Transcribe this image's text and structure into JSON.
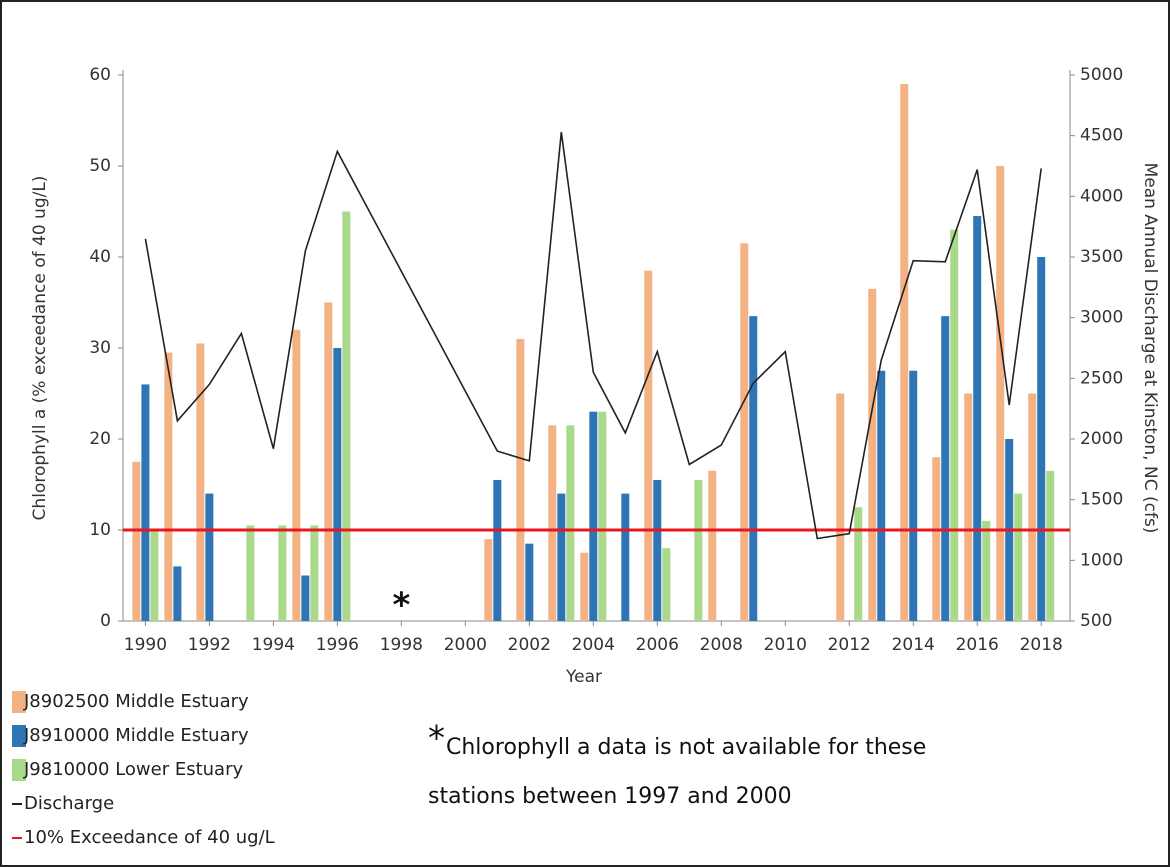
{
  "chart_data": {
    "type": "combo",
    "x_label": "Year",
    "y_label": "Chlorophyll a (% exceedance of 40 ug/L)",
    "y2_label": "Mean Annual Discharge at Kinston, NC (cfs)",
    "x": [
      1990,
      1991,
      1992,
      1993,
      1994,
      1995,
      1996,
      1997,
      1998,
      1999,
      2000,
      2001,
      2002,
      2003,
      2004,
      2005,
      2006,
      2007,
      2008,
      2009,
      2010,
      2011,
      2012,
      2013,
      2014,
      2015,
      2016,
      2017,
      2018
    ],
    "xlim": [
      1989.3,
      2018.9
    ],
    "xticks": [
      1990,
      1992,
      1994,
      1996,
      1998,
      2000,
      2002,
      2004,
      2006,
      2008,
      2010,
      2012,
      2014,
      2016,
      2018
    ],
    "ylim": [
      0,
      60
    ],
    "yticks": [
      0,
      10,
      20,
      30,
      40,
      50,
      60
    ],
    "y2lim": [
      500,
      5000
    ],
    "y2ticks": [
      500,
      1000,
      1500,
      2000,
      2500,
      3000,
      3500,
      4000,
      4500,
      5000
    ],
    "series": [
      {
        "name": "J8902500 Middle Estuary",
        "type": "bar",
        "color": "#f4b183",
        "values": [
          17.5,
          29.5,
          30.5,
          null,
          null,
          32,
          35,
          null,
          null,
          null,
          null,
          9,
          31,
          21.5,
          7.5,
          null,
          38.5,
          null,
          16.5,
          41.5,
          null,
          null,
          25,
          36.5,
          59,
          18,
          25,
          50,
          25
        ]
      },
      {
        "name": "J8910000 Middle Estuary",
        "type": "bar",
        "color": "#2e75b6",
        "values": [
          26,
          6,
          14,
          null,
          null,
          5,
          30,
          null,
          null,
          null,
          null,
          15.5,
          8.5,
          14,
          23,
          14,
          15.5,
          null,
          null,
          33.5,
          null,
          null,
          null,
          27.5,
          27.5,
          33.5,
          44.5,
          20,
          40
        ]
      },
      {
        "name": "J9810000 Lower Estuary",
        "type": "bar",
        "color": "#a9d98a",
        "values": [
          10,
          null,
          null,
          10.5,
          10.5,
          10.5,
          45,
          null,
          null,
          null,
          null,
          null,
          null,
          21.5,
          23,
          null,
          8,
          15.5,
          null,
          null,
          null,
          null,
          12.5,
          null,
          null,
          43,
          11,
          14,
          16.5
        ]
      },
      {
        "name": "Discharge",
        "type": "line",
        "axis": "y2",
        "color": "#222222",
        "x": [
          1990,
          1991,
          1992,
          1993,
          1994,
          1995,
          1996,
          2001,
          2002,
          2003,
          2004,
          2005,
          2006,
          2007,
          2008,
          2009,
          2010,
          2011,
          2012,
          2013,
          2014,
          2015,
          2016,
          2017,
          2018
        ],
        "values": [
          3650,
          2150,
          2450,
          2870,
          1920,
          3550,
          4370,
          1900,
          1820,
          4530,
          2550,
          2050,
          2720,
          1790,
          1950,
          2460,
          2720,
          1180,
          1220,
          2650,
          3470,
          3460,
          4220,
          2280,
          4230
        ]
      }
    ],
    "reference_lines": [
      {
        "name": "10% Exceedance of 40 ug/L",
        "value": 10,
        "color": "#e8161e"
      }
    ],
    "note_marker": {
      "text": "*",
      "x": 1998
    },
    "annotation": {
      "mark": "*",
      "lines": [
        "Chlorophyll a data is not available for these",
        "stations between 1997 and 2000"
      ]
    }
  }
}
